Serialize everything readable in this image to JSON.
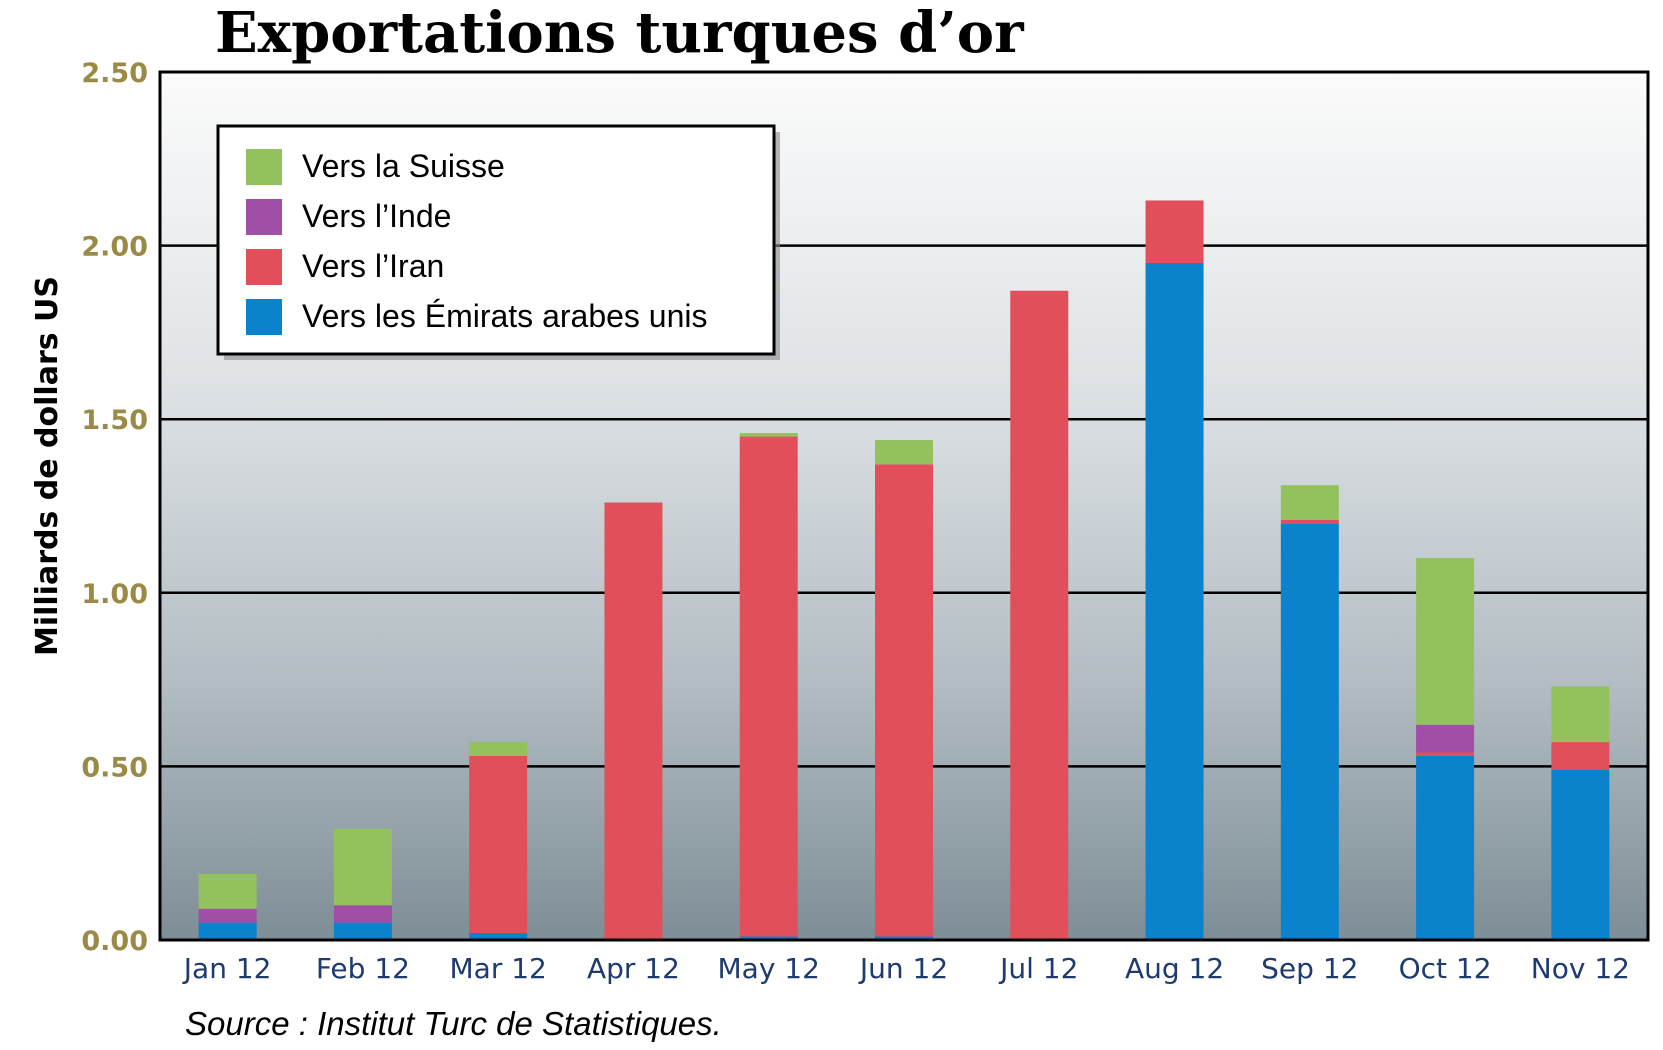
{
  "title": "Exportations turques d’or",
  "source": "Source : Institut Turc de Statistiques.",
  "chart_data": {
    "type": "bar",
    "stacked": true,
    "ylabel": "Milliards de dollars US",
    "ylim": [
      0,
      2.5
    ],
    "yticks": [
      "0.00",
      "0.50",
      "1.00",
      "1.50",
      "2.00",
      "2.50"
    ],
    "ytick_values": [
      0,
      0.5,
      1.0,
      1.5,
      2.0,
      2.5
    ],
    "grid": true,
    "legend_position": "top-left",
    "categories": [
      "Jan 12",
      "Feb 12",
      "Mar 12",
      "Apr 12",
      "May 12",
      "Jun 12",
      "Jul 12",
      "Aug 12",
      "Sep 12",
      "Oct 12",
      "Nov 12"
    ],
    "series": [
      {
        "name": "Vers les Émirats arabes unis",
        "color": "#0a82cc",
        "values": [
          0.05,
          0.05,
          0.02,
          0.0,
          0.01,
          0.01,
          0.0,
          1.95,
          1.2,
          0.53,
          0.49
        ]
      },
      {
        "name": "Vers l’Iran",
        "color": "#e04f5a",
        "values": [
          0.0,
          0.0,
          0.51,
          1.26,
          1.44,
          1.36,
          1.87,
          0.18,
          0.01,
          0.01,
          0.08
        ]
      },
      {
        "name": "Vers l’Inde",
        "color": "#a04ea6",
        "values": [
          0.04,
          0.05,
          0.0,
          0.0,
          0.0,
          0.0,
          0.0,
          0.0,
          0.0,
          0.08,
          0.0
        ]
      },
      {
        "name": "Vers la Suisse",
        "color": "#92c15e",
        "values": [
          0.1,
          0.22,
          0.04,
          0.0,
          0.01,
          0.07,
          0.0,
          0.0,
          0.1,
          0.48,
          0.16
        ]
      }
    ],
    "legend_order": [
      "Vers la Suisse",
      "Vers l’Inde",
      "Vers l’Iran",
      "Vers les Émirats arabes unis"
    ]
  }
}
